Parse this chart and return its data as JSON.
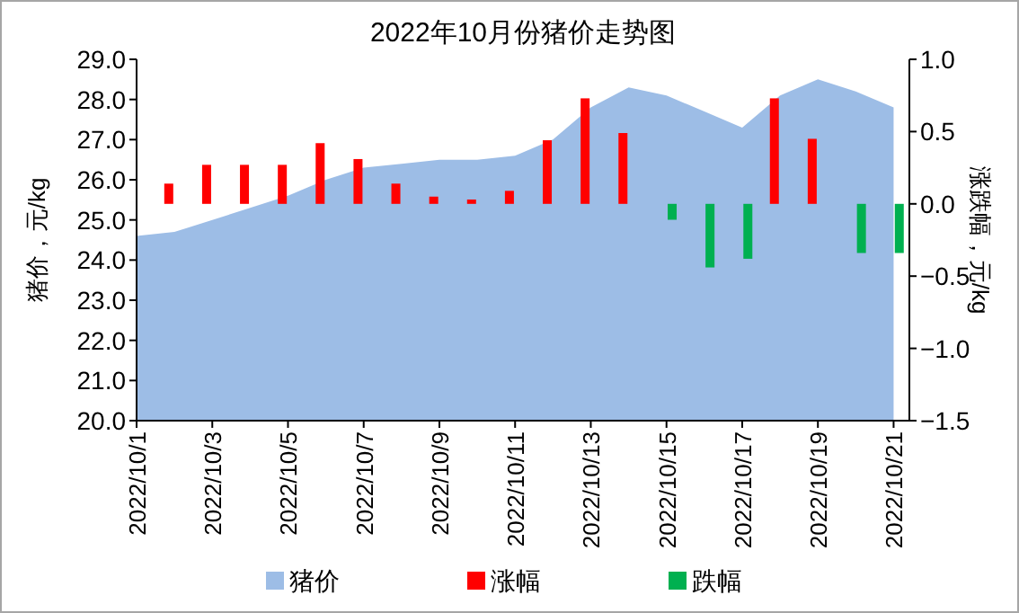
{
  "chart_data": {
    "type": "bar",
    "title": "2022年10月份猪价走势图",
    "ylabel": "猪价，元/kg",
    "y2label": "涨跌幅，元/kg",
    "x": [
      "2022-10-01",
      "2022-10-02",
      "2022-10-03",
      "2022-10-04",
      "2022-10-05",
      "2022-10-06",
      "2022-10-07",
      "2022-10-08",
      "2022-10-09",
      "2022-10-10",
      "2022-10-11",
      "2022-10-12",
      "2022-10-13",
      "2022-10-14",
      "2022-10-15",
      "2022-10-16",
      "2022-10-17",
      "2022-10-18",
      "2022-10-19",
      "2022-10-20",
      "2022-10-21"
    ],
    "series": [
      {
        "name": "猪价",
        "type": "area",
        "color": "#9dbde6",
        "values": [
          24.6,
          24.7,
          25.0,
          25.3,
          25.6,
          26.0,
          26.3,
          26.4,
          26.5,
          26.5,
          26.6,
          27.0,
          27.8,
          28.3,
          28.1,
          27.7,
          27.3,
          28.1,
          28.5,
          28.2,
          27.8
        ]
      },
      {
        "name": "涨幅",
        "type": "bar",
        "axis": "y2",
        "color": "#ff0000",
        "values": [
          null,
          0.14,
          0.27,
          0.27,
          0.27,
          0.42,
          0.31,
          0.14,
          0.05,
          0.03,
          0.09,
          0.44,
          0.73,
          0.49,
          null,
          null,
          null,
          0.73,
          0.45,
          null,
          null
        ]
      },
      {
        "name": "跌幅",
        "type": "bar",
        "axis": "y2",
        "color": "#00b050",
        "values": [
          null,
          null,
          null,
          null,
          null,
          null,
          null,
          null,
          null,
          null,
          null,
          null,
          null,
          null,
          -0.11,
          -0.44,
          -0.38,
          null,
          null,
          -0.34,
          -0.34
        ]
      }
    ],
    "xlim": [
      "2022-10-01",
      "2022-10-21T10:00"
    ],
    "xticks": [
      {
        "value": "2022-10-01",
        "label": "2022/10/1"
      },
      {
        "value": "2022-10-03",
        "label": "2022/10/3"
      },
      {
        "value": "2022-10-05",
        "label": "2022/10/5"
      },
      {
        "value": "2022-10-07",
        "label": "2022/10/7"
      },
      {
        "value": "2022-10-09",
        "label": "2022/10/9"
      },
      {
        "value": "2022-10-11",
        "label": "2022/10/11"
      },
      {
        "value": "2022-10-13",
        "label": "2022/10/13"
      },
      {
        "value": "2022-10-15",
        "label": "2022/10/15"
      },
      {
        "value": "2022-10-17",
        "label": "2022/10/17"
      },
      {
        "value": "2022-10-19",
        "label": "2022/10/19"
      },
      {
        "value": "2022-10-21",
        "label": "2022/10/21"
      }
    ],
    "ylim": [
      20,
      29
    ],
    "yticks": [
      {
        "value": 20,
        "label": "20.0"
      },
      {
        "value": 21,
        "label": "21.0"
      },
      {
        "value": 22,
        "label": "22.0"
      },
      {
        "value": 23,
        "label": "23.0"
      },
      {
        "value": 24,
        "label": "24.0"
      },
      {
        "value": 25,
        "label": "25.0"
      },
      {
        "value": 26,
        "label": "26.0"
      },
      {
        "value": 27,
        "label": "27.0"
      },
      {
        "value": 28,
        "label": "28.0"
      },
      {
        "value": 29,
        "label": "29.0"
      }
    ],
    "y2lim": [
      -1.5,
      1
    ],
    "y2ticks": [
      {
        "value": -1.5,
        "label": "−1.5"
      },
      {
        "value": -1,
        "label": "−1.0"
      },
      {
        "value": -0.5,
        "label": "−0.5"
      },
      {
        "value": 0,
        "label": "0.0"
      },
      {
        "value": 0.5,
        "label": "0.5"
      },
      {
        "value": 1,
        "label": "1.0"
      }
    ],
    "grid": false,
    "legend": "bottom"
  }
}
